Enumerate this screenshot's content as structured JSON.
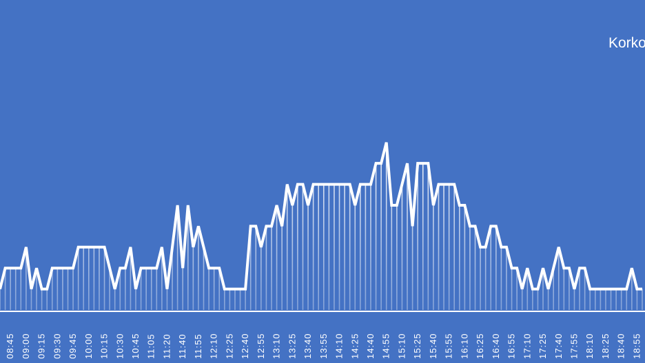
{
  "chart_data": {
    "type": "line",
    "title": "Korko",
    "categories": [
      null,
      null,
      "08:45",
      null,
      null,
      "09:00",
      null,
      null,
      "09:15",
      null,
      null,
      "09:30",
      null,
      null,
      "09:45",
      null,
      null,
      "10:00",
      null,
      null,
      "10:15",
      null,
      null,
      "10:30",
      null,
      null,
      "10:45",
      null,
      null,
      "11:05",
      null,
      null,
      "11:20",
      null,
      null,
      "11:40",
      null,
      null,
      "11:55",
      null,
      null,
      "12:10",
      null,
      null,
      "12:25",
      null,
      null,
      "12:40",
      null,
      null,
      "12:55",
      null,
      null,
      "13:10",
      null,
      null,
      "13:25",
      null,
      null,
      "13:40",
      null,
      null,
      "13:55",
      null,
      null,
      "14:10",
      null,
      null,
      "14:25",
      null,
      null,
      "14:40",
      null,
      null,
      "14:55",
      null,
      null,
      "15:10",
      null,
      null,
      "15:25",
      null,
      null,
      "15:40",
      null,
      null,
      "15:55",
      null,
      null,
      "16:10",
      null,
      null,
      "16:25",
      null,
      null,
      "16:40",
      null,
      null,
      "16:55",
      null,
      null,
      "17:10",
      null,
      null,
      "17:25",
      null,
      null,
      "17:40",
      null,
      null,
      "17:55",
      null,
      null,
      "18:10",
      null,
      null,
      "18:25",
      null,
      null,
      "18:40",
      null,
      null,
      "18:55",
      null
    ],
    "values": [
      1,
      2,
      2,
      2,
      2,
      3,
      1,
      2,
      1,
      1,
      2,
      2,
      2,
      2,
      2,
      3,
      3,
      3,
      3,
      3,
      3,
      2,
      1,
      2,
      2,
      3,
      1,
      2,
      2,
      2,
      2,
      3,
      1,
      3,
      5,
      2,
      5,
      3,
      4,
      3,
      2,
      2,
      2,
      1,
      1,
      1,
      1,
      1,
      4,
      4,
      3,
      4,
      4,
      5,
      4,
      6,
      5,
      6,
      6,
      5,
      6,
      6,
      6,
      6,
      6,
      6,
      6,
      6,
      5,
      6,
      6,
      6,
      7,
      7,
      8,
      5,
      5,
      6,
      7,
      4,
      7,
      7,
      7,
      5,
      6,
      6,
      6,
      6,
      5,
      5,
      4,
      4,
      3,
      3,
      4,
      4,
      3,
      3,
      2,
      2,
      1,
      2,
      1,
      1,
      2,
      1,
      2,
      3,
      2,
      2,
      1,
      2,
      2,
      1,
      1,
      1,
      1,
      1,
      1,
      1,
      1,
      2,
      1,
      1
    ],
    "color": "#ffffff",
    "ylim": [
      0,
      14.8
    ]
  }
}
